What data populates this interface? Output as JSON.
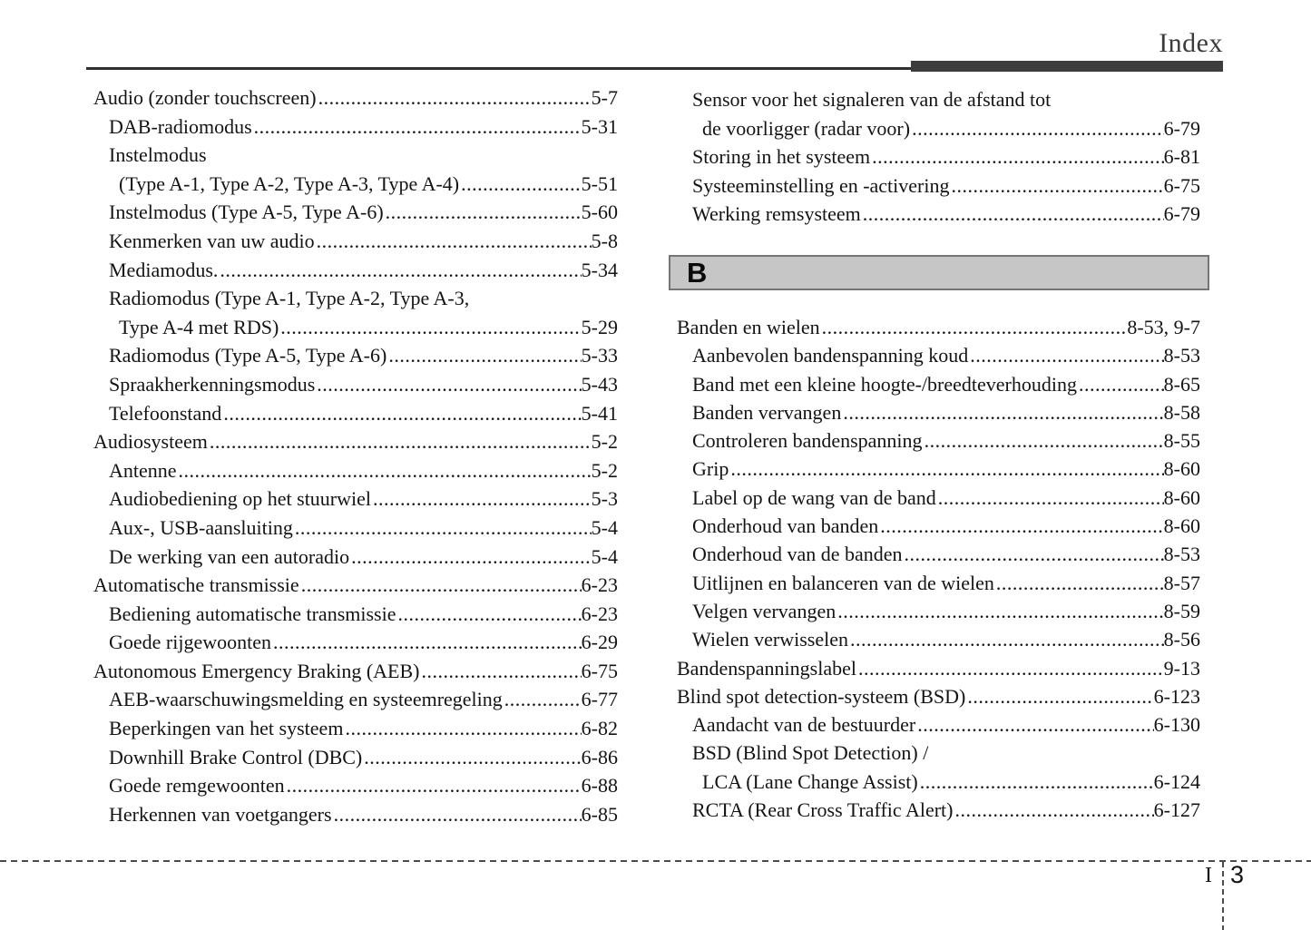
{
  "header": {
    "title": "Index"
  },
  "sections": {
    "b_header": "B"
  },
  "columns": {
    "left": {
      "entries": [
        {
          "text": "Audio (zonder touchscreen)",
          "page": "5-7",
          "indent": 0
        },
        {
          "text": "DAB-radiomodus",
          "page": "5-31",
          "indent": 1
        },
        {
          "text": "Instelmodus",
          "page": null,
          "indent": 1
        },
        {
          "text": "(Type A-1, Type A-2, Type A-3, Type A-4)",
          "page": "5-51",
          "indent": 2
        },
        {
          "text": "Instelmodus (Type A-5, Type A-6)",
          "page": "5-60",
          "indent": 1
        },
        {
          "text": "Kenmerken van uw audio",
          "page": "5-8",
          "indent": 1
        },
        {
          "text": "Mediamodus.",
          "page": "5-34",
          "indent": 1
        },
        {
          "text": "Radiomodus (Type A-1, Type A-2, Type A-3,",
          "page": null,
          "indent": 1
        },
        {
          "text": "Type A-4 met RDS)",
          "page": "5-29",
          "indent": 2
        },
        {
          "text": "Radiomodus (Type A-5, Type A-6)",
          "page": "5-33",
          "indent": 1
        },
        {
          "text": "Spraakherkenningsmodus",
          "page": "5-43",
          "indent": 1
        },
        {
          "text": "Telefoonstand",
          "page": "5-41",
          "indent": 1
        },
        {
          "text": "Audiosysteem",
          "page": "5-2",
          "indent": 0
        },
        {
          "text": "Antenne",
          "page": "5-2",
          "indent": 1
        },
        {
          "text": "Audiobediening op het stuurwiel",
          "page": "5-3",
          "indent": 1
        },
        {
          "text": "Aux-, USB-aansluiting",
          "page": "5-4",
          "indent": 1
        },
        {
          "text": "De werking van een autoradio",
          "page": "5-4",
          "indent": 1
        },
        {
          "text": "Automatische transmissie",
          "page": "6-23",
          "indent": 0
        },
        {
          "text": "Bediening automatische transmissie",
          "page": "6-23",
          "indent": 1
        },
        {
          "text": "Goede rijgewoonten",
          "page": "6-29",
          "indent": 1
        },
        {
          "text": "Autonomous Emergency Braking (AEB)",
          "page": "6-75",
          "indent": 0
        },
        {
          "text": "AEB-waarschuwingsmelding en systeemregeling",
          "page": "6-77",
          "indent": 1
        },
        {
          "text": "Beperkingen van het systeem",
          "page": "6-82",
          "indent": 1
        },
        {
          "text": "Downhill Brake Control (DBC)",
          "page": "6-86",
          "indent": 1
        },
        {
          "text": "Goede remgewoonten",
          "page": "6-88",
          "indent": 1
        },
        {
          "text": "Herkennen van voetgangers",
          "page": "6-85",
          "indent": 1
        }
      ]
    },
    "right_top": {
      "entries": [
        {
          "text": "Sensor voor het signaleren van de afstand tot",
          "page": null,
          "indent": 1
        },
        {
          "text": "de voorligger (radar voor)",
          "page": "6-79",
          "indent": 2
        },
        {
          "text": "Storing in het systeem",
          "page": "6-81",
          "indent": 1
        },
        {
          "text": "Systeeminstelling en -activering",
          "page": "6-75",
          "indent": 1
        },
        {
          "text": "Werking remsysteem",
          "page": "6-79",
          "indent": 1
        }
      ]
    },
    "right_b": {
      "entries": [
        {
          "text": "Banden en wielen",
          "page": "8-53, 9-7",
          "indent": 0
        },
        {
          "text": "Aanbevolen bandenspanning koud",
          "page": "8-53",
          "indent": 1
        },
        {
          "text": "Band met een kleine hoogte-/breedteverhouding",
          "page": "8-65",
          "indent": 1
        },
        {
          "text": "Banden vervangen",
          "page": "8-58",
          "indent": 1
        },
        {
          "text": "Controleren bandenspanning",
          "page": "8-55",
          "indent": 1
        },
        {
          "text": "Grip",
          "page": "8-60",
          "indent": 1
        },
        {
          "text": "Label op de wang van de band",
          "page": "8-60",
          "indent": 1
        },
        {
          "text": "Onderhoud van banden",
          "page": "8-60",
          "indent": 1
        },
        {
          "text": "Onderhoud van de banden",
          "page": "8-53",
          "indent": 1
        },
        {
          "text": "Uitlijnen en balanceren van de wielen",
          "page": "8-57",
          "indent": 1
        },
        {
          "text": "Velgen vervangen",
          "page": "8-59",
          "indent": 1
        },
        {
          "text": "Wielen verwisselen",
          "page": "8-56",
          "indent": 1
        },
        {
          "text": "Bandenspanningslabel",
          "page": "9-13",
          "indent": 0
        },
        {
          "text": "Blind spot detection-systeem (BSD)",
          "page": "6-123",
          "indent": 0
        },
        {
          "text": "Aandacht van de bestuurder",
          "page": "6-130",
          "indent": 1
        },
        {
          "text": "BSD (Blind Spot Detection) /",
          "page": null,
          "indent": 1
        },
        {
          "text": "LCA (Lane Change Assist)",
          "page": "6-124",
          "indent": 2
        },
        {
          "text": "RCTA (Rear Cross Traffic Alert)",
          "page": "6-127",
          "indent": 1
        }
      ]
    }
  },
  "footer": {
    "section_letter": "I",
    "page_number": "3"
  },
  "colors": {
    "header_bar": "#3d3d3d",
    "section_bar_fill": "#c6c6c6",
    "section_bar_border": "#757575",
    "text": "#141414"
  }
}
